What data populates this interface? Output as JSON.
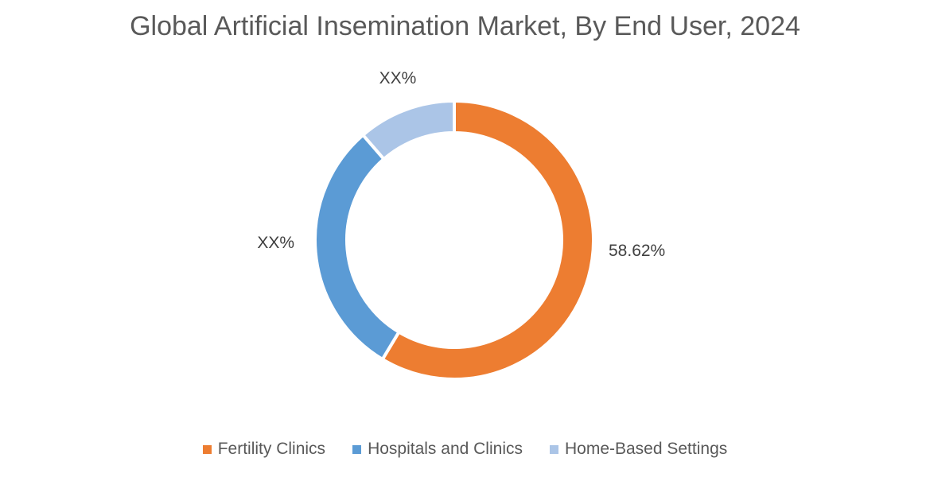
{
  "chart_data": {
    "type": "pie",
    "variant": "donut",
    "title": "Global Artificial Insemination Market, By End User, 2024",
    "categories": [
      "Fertility Clinics",
      "Hospitals and Clinics",
      "Home-Based Settings"
    ],
    "values": [
      58.62,
      30.0,
      11.38
    ],
    "data_labels": [
      "58.62%",
      "XX%",
      "XX%"
    ],
    "colors": [
      "#ED7D31",
      "#5B9BD5",
      "#ABC5E7"
    ],
    "legend_position": "bottom"
  }
}
